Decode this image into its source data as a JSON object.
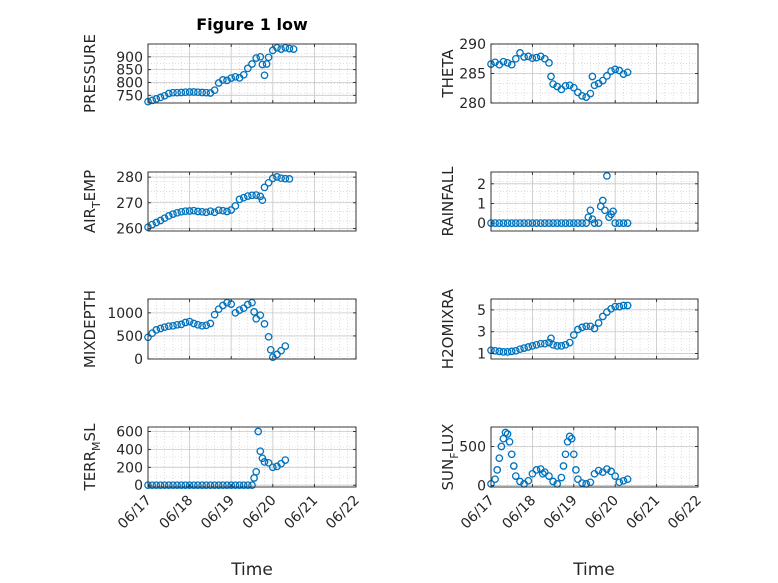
{
  "title": "Figure 1 low",
  "colors": {
    "marker": "#0072BD",
    "grid": "#c8c8c8",
    "axis": "#262626"
  },
  "x_axis": {
    "label": "Time",
    "ticks": [
      "06/17",
      "06/18",
      "06/19",
      "06/20",
      "06/21",
      "06/22"
    ],
    "range": [
      0,
      5
    ]
  },
  "chart_data": [
    {
      "type": "scatter",
      "ylabel": "PRESSURE",
      "ylim": [
        720,
        950
      ],
      "yticks": [
        750,
        800,
        850,
        900
      ],
      "grid": true,
      "column": "left",
      "points": [
        [
          0.0,
          725
        ],
        [
          0.1,
          730
        ],
        [
          0.2,
          736
        ],
        [
          0.3,
          742
        ],
        [
          0.4,
          748
        ],
        [
          0.5,
          757
        ],
        [
          0.6,
          760
        ],
        [
          0.7,
          760
        ],
        [
          0.8,
          761
        ],
        [
          0.9,
          762
        ],
        [
          1.0,
          763
        ],
        [
          1.1,
          763
        ],
        [
          1.2,
          762
        ],
        [
          1.3,
          761
        ],
        [
          1.4,
          760
        ],
        [
          1.5,
          759
        ],
        [
          1.6,
          770
        ],
        [
          1.7,
          798
        ],
        [
          1.8,
          810
        ],
        [
          1.9,
          808
        ],
        [
          2.0,
          817
        ],
        [
          2.1,
          822
        ],
        [
          2.2,
          818
        ],
        [
          2.3,
          830
        ],
        [
          2.4,
          855
        ],
        [
          2.5,
          872
        ],
        [
          2.6,
          895
        ],
        [
          2.7,
          900
        ],
        [
          2.75,
          870
        ],
        [
          2.8,
          828
        ],
        [
          2.85,
          872
        ],
        [
          2.9,
          898
        ],
        [
          3.0,
          925
        ],
        [
          3.1,
          935
        ],
        [
          3.2,
          930
        ],
        [
          3.3,
          935
        ],
        [
          3.4,
          932
        ],
        [
          3.5,
          930
        ]
      ]
    },
    {
      "type": "scatter",
      "ylabel": "THETA",
      "ylim": [
        280,
        290
      ],
      "yticks": [
        280,
        285,
        290
      ],
      "grid": true,
      "column": "right",
      "points": [
        [
          0.0,
          286.6
        ],
        [
          0.1,
          286.9
        ],
        [
          0.2,
          286.5
        ],
        [
          0.3,
          287.0
        ],
        [
          0.4,
          286.8
        ],
        [
          0.5,
          286.5
        ],
        [
          0.6,
          287.5
        ],
        [
          0.7,
          288.5
        ],
        [
          0.8,
          287.8
        ],
        [
          0.9,
          287.9
        ],
        [
          1.0,
          287.6
        ],
        [
          1.1,
          287.7
        ],
        [
          1.2,
          287.9
        ],
        [
          1.3,
          287.5
        ],
        [
          1.4,
          286.8
        ],
        [
          1.45,
          284.5
        ],
        [
          1.5,
          283.2
        ],
        [
          1.6,
          282.8
        ],
        [
          1.7,
          282.3
        ],
        [
          1.8,
          282.9
        ],
        [
          1.9,
          283.0
        ],
        [
          2.0,
          282.6
        ],
        [
          2.1,
          281.8
        ],
        [
          2.2,
          281.2
        ],
        [
          2.3,
          281.0
        ],
        [
          2.4,
          281.6
        ],
        [
          2.45,
          284.5
        ],
        [
          2.5,
          283.0
        ],
        [
          2.6,
          283.3
        ],
        [
          2.7,
          283.8
        ],
        [
          2.8,
          284.6
        ],
        [
          2.9,
          285.4
        ],
        [
          3.0,
          285.7
        ],
        [
          3.1,
          285.5
        ],
        [
          3.2,
          284.9
        ],
        [
          3.3,
          285.2
        ]
      ]
    },
    {
      "type": "scatter",
      "ylabel": "AIR",
      "ylabel_sub": "T",
      "ylabel_rest": "EMP",
      "ylim": [
        259,
        282
      ],
      "yticks": [
        260,
        270,
        280
      ],
      "grid": true,
      "column": "left",
      "points": [
        [
          0.0,
          260.5
        ],
        [
          0.1,
          261.5
        ],
        [
          0.2,
          262.3
        ],
        [
          0.3,
          263.1
        ],
        [
          0.4,
          264.0
        ],
        [
          0.5,
          264.9
        ],
        [
          0.6,
          265.6
        ],
        [
          0.7,
          266.1
        ],
        [
          0.8,
          266.5
        ],
        [
          0.9,
          266.7
        ],
        [
          1.0,
          266.8
        ],
        [
          1.1,
          266.9
        ],
        [
          1.2,
          266.6
        ],
        [
          1.3,
          266.5
        ],
        [
          1.4,
          266.3
        ],
        [
          1.5,
          266.7
        ],
        [
          1.6,
          266.3
        ],
        [
          1.7,
          267.1
        ],
        [
          1.8,
          266.9
        ],
        [
          1.9,
          266.6
        ],
        [
          2.0,
          267.2
        ],
        [
          2.1,
          268.8
        ],
        [
          2.2,
          271.3
        ],
        [
          2.3,
          272.0
        ],
        [
          2.4,
          272.6
        ],
        [
          2.5,
          272.9
        ],
        [
          2.6,
          273.0
        ],
        [
          2.7,
          272.5
        ],
        [
          2.75,
          271.0
        ],
        [
          2.8,
          276.0
        ],
        [
          2.9,
          277.8
        ],
        [
          3.0,
          279.5
        ],
        [
          3.1,
          280.1
        ],
        [
          3.2,
          279.6
        ],
        [
          3.3,
          279.4
        ],
        [
          3.4,
          279.3
        ]
      ]
    },
    {
      "type": "scatter",
      "ylabel": "RAINFALL",
      "ylim": [
        -0.4,
        2.6
      ],
      "yticks": [
        0,
        1,
        2
      ],
      "grid": true,
      "column": "right",
      "points": [
        [
          0.0,
          0
        ],
        [
          0.1,
          0
        ],
        [
          0.2,
          0
        ],
        [
          0.3,
          0
        ],
        [
          0.4,
          0
        ],
        [
          0.5,
          0
        ],
        [
          0.6,
          0
        ],
        [
          0.7,
          0
        ],
        [
          0.8,
          0
        ],
        [
          0.9,
          0
        ],
        [
          1.0,
          0
        ],
        [
          1.1,
          0
        ],
        [
          1.2,
          0
        ],
        [
          1.3,
          0
        ],
        [
          1.4,
          0
        ],
        [
          1.5,
          0
        ],
        [
          1.6,
          0
        ],
        [
          1.7,
          0
        ],
        [
          1.8,
          0
        ],
        [
          1.9,
          0
        ],
        [
          2.0,
          0
        ],
        [
          2.1,
          0
        ],
        [
          2.2,
          0
        ],
        [
          2.3,
          0
        ],
        [
          2.35,
          0.3
        ],
        [
          2.4,
          0.65
        ],
        [
          2.45,
          0.2
        ],
        [
          2.5,
          0
        ],
        [
          2.6,
          0
        ],
        [
          2.65,
          0.85
        ],
        [
          2.7,
          1.15
        ],
        [
          2.75,
          0.65
        ],
        [
          2.8,
          2.4
        ],
        [
          2.85,
          0.3
        ],
        [
          2.9,
          0.45
        ],
        [
          2.95,
          0.6
        ],
        [
          3.0,
          0
        ],
        [
          3.1,
          0
        ],
        [
          3.2,
          0
        ],
        [
          3.3,
          0
        ]
      ]
    },
    {
      "type": "scatter",
      "ylabel": "MIXDEPTH",
      "ylim": [
        0,
        1300
      ],
      "yticks": [
        0,
        500,
        1000
      ],
      "grid": true,
      "column": "left",
      "points": [
        [
          0.0,
          470
        ],
        [
          0.1,
          560
        ],
        [
          0.2,
          630
        ],
        [
          0.3,
          660
        ],
        [
          0.4,
          690
        ],
        [
          0.5,
          710
        ],
        [
          0.6,
          720
        ],
        [
          0.7,
          740
        ],
        [
          0.8,
          750
        ],
        [
          0.9,
          790
        ],
        [
          1.0,
          810
        ],
        [
          1.1,
          770
        ],
        [
          1.2,
          740
        ],
        [
          1.3,
          720
        ],
        [
          1.4,
          730
        ],
        [
          1.5,
          770
        ],
        [
          1.6,
          960
        ],
        [
          1.7,
          1080
        ],
        [
          1.8,
          1160
        ],
        [
          1.9,
          1220
        ],
        [
          2.0,
          1190
        ],
        [
          2.1,
          1000
        ],
        [
          2.2,
          1060
        ],
        [
          2.3,
          1100
        ],
        [
          2.4,
          1180
        ],
        [
          2.5,
          1220
        ],
        [
          2.55,
          1020
        ],
        [
          2.6,
          870
        ],
        [
          2.7,
          950
        ],
        [
          2.8,
          760
        ],
        [
          2.9,
          480
        ],
        [
          2.95,
          200
        ],
        [
          3.0,
          40
        ],
        [
          3.1,
          100
        ],
        [
          3.2,
          180
        ],
        [
          3.3,
          280
        ]
      ]
    },
    {
      "type": "scatter",
      "ylabel": "H2OMIXRA",
      "ylim": [
        0.5,
        6
      ],
      "yticks": [
        1,
        3,
        5
      ],
      "grid": true,
      "column": "right",
      "points": [
        [
          0.0,
          1.3
        ],
        [
          0.1,
          1.25
        ],
        [
          0.2,
          1.2
        ],
        [
          0.3,
          1.15
        ],
        [
          0.4,
          1.15
        ],
        [
          0.5,
          1.2
        ],
        [
          0.6,
          1.25
        ],
        [
          0.7,
          1.4
        ],
        [
          0.8,
          1.5
        ],
        [
          0.9,
          1.6
        ],
        [
          1.0,
          1.7
        ],
        [
          1.1,
          1.8
        ],
        [
          1.2,
          1.9
        ],
        [
          1.3,
          1.9
        ],
        [
          1.4,
          2.0
        ],
        [
          1.45,
          2.4
        ],
        [
          1.5,
          1.8
        ],
        [
          1.6,
          1.7
        ],
        [
          1.7,
          1.7
        ],
        [
          1.8,
          1.8
        ],
        [
          1.9,
          2.0
        ],
        [
          2.0,
          2.7
        ],
        [
          2.1,
          3.2
        ],
        [
          2.2,
          3.4
        ],
        [
          2.3,
          3.5
        ],
        [
          2.4,
          3.5
        ],
        [
          2.5,
          3.3
        ],
        [
          2.6,
          3.8
        ],
        [
          2.7,
          4.4
        ],
        [
          2.8,
          4.8
        ],
        [
          2.9,
          5.1
        ],
        [
          3.0,
          5.3
        ],
        [
          3.1,
          5.3
        ],
        [
          3.2,
          5.4
        ],
        [
          3.3,
          5.4
        ]
      ]
    },
    {
      "type": "scatter",
      "ylabel": "TERR",
      "ylabel_sub": "M",
      "ylabel_rest": "SL",
      "ylim": [
        -20,
        650
      ],
      "yticks": [
        0,
        200,
        400,
        600
      ],
      "grid": true,
      "column": "left",
      "points": [
        [
          0.0,
          0
        ],
        [
          0.1,
          0
        ],
        [
          0.2,
          0
        ],
        [
          0.3,
          0
        ],
        [
          0.4,
          0
        ],
        [
          0.5,
          0
        ],
        [
          0.6,
          0
        ],
        [
          0.7,
          0
        ],
        [
          0.8,
          0
        ],
        [
          0.9,
          0
        ],
        [
          1.0,
          0
        ],
        [
          1.1,
          0
        ],
        [
          1.2,
          0
        ],
        [
          1.3,
          0
        ],
        [
          1.4,
          0
        ],
        [
          1.5,
          0
        ],
        [
          1.6,
          0
        ],
        [
          1.7,
          0
        ],
        [
          1.8,
          0
        ],
        [
          1.9,
          0
        ],
        [
          2.0,
          0
        ],
        [
          2.1,
          0
        ],
        [
          2.2,
          0
        ],
        [
          2.3,
          0
        ],
        [
          2.4,
          0
        ],
        [
          2.5,
          0
        ],
        [
          2.55,
          80
        ],
        [
          2.6,
          150
        ],
        [
          2.65,
          600
        ],
        [
          2.7,
          380
        ],
        [
          2.75,
          300
        ],
        [
          2.8,
          260
        ],
        [
          2.9,
          250
        ],
        [
          3.0,
          200
        ],
        [
          3.1,
          210
        ],
        [
          3.2,
          240
        ],
        [
          3.3,
          280
        ]
      ]
    },
    {
      "type": "scatter",
      "ylabel": "SUN",
      "ylabel_sub": "F",
      "ylabel_rest": "LUX",
      "ylim": [
        -20,
        750
      ],
      "yticks": [
        0,
        500
      ],
      "grid": true,
      "column": "right",
      "points": [
        [
          0.0,
          20
        ],
        [
          0.1,
          80
        ],
        [
          0.15,
          200
        ],
        [
          0.2,
          350
        ],
        [
          0.25,
          500
        ],
        [
          0.3,
          600
        ],
        [
          0.35,
          680
        ],
        [
          0.4,
          660
        ],
        [
          0.45,
          560
        ],
        [
          0.5,
          400
        ],
        [
          0.55,
          250
        ],
        [
          0.6,
          120
        ],
        [
          0.7,
          50
        ],
        [
          0.8,
          20
        ],
        [
          0.9,
          60
        ],
        [
          1.0,
          150
        ],
        [
          1.1,
          200
        ],
        [
          1.2,
          210
        ],
        [
          1.25,
          150
        ],
        [
          1.3,
          170
        ],
        [
          1.4,
          120
        ],
        [
          1.5,
          50
        ],
        [
          1.6,
          20
        ],
        [
          1.7,
          100
        ],
        [
          1.75,
          250
        ],
        [
          1.8,
          400
        ],
        [
          1.85,
          560
        ],
        [
          1.9,
          630
        ],
        [
          1.95,
          600
        ],
        [
          2.0,
          400
        ],
        [
          2.05,
          200
        ],
        [
          2.1,
          80
        ],
        [
          2.2,
          30
        ],
        [
          2.3,
          20
        ],
        [
          2.4,
          40
        ],
        [
          2.5,
          150
        ],
        [
          2.6,
          190
        ],
        [
          2.7,
          170
        ],
        [
          2.8,
          210
        ],
        [
          2.9,
          180
        ],
        [
          3.0,
          120
        ],
        [
          3.1,
          40
        ],
        [
          3.2,
          60
        ],
        [
          3.3,
          80
        ]
      ]
    }
  ]
}
